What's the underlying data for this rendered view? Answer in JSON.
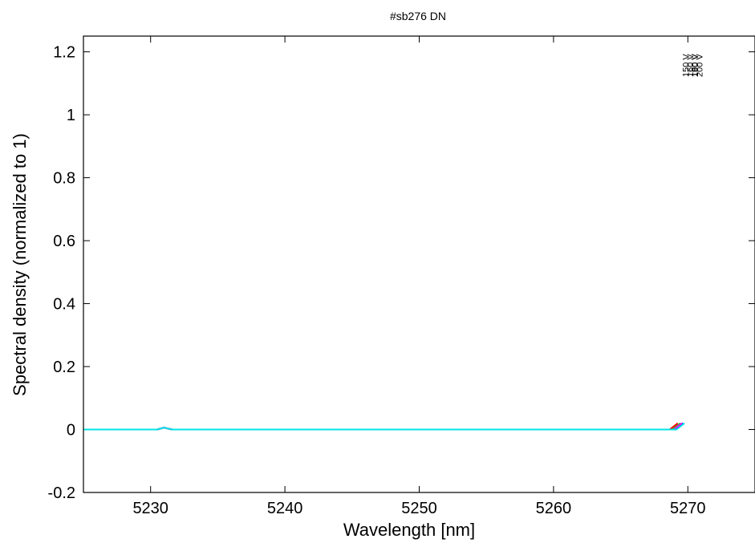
{
  "chart_data": {
    "type": "line",
    "title": "#sb276 DN",
    "xlabel": "Wavelength [nm]",
    "ylabel": "Spectral density (normalized to 1)",
    "xlim": [
      5225,
      5275
    ],
    "ylim": [
      -0.2,
      1.25
    ],
    "xticks": [
      "5230",
      "5240",
      "5250",
      "5260",
      "5270"
    ],
    "yticks": [
      "-0.2",
      "0",
      "0.2",
      "0.4",
      "0.6",
      "0.8",
      "1",
      "1.2"
    ],
    "grid": false,
    "legend": "none",
    "series": [
      {
        "color": "#ff0000",
        "peak": 5270.1,
        "label": "150 V"
      },
      {
        "color": "#00cc00",
        "peak": 5270.3,
        "label": "160 V"
      },
      {
        "color": "#0000ff",
        "peak": 5270.5,
        "label": "180 V"
      },
      {
        "color": "#ff00ff",
        "peak": 5270.4,
        "label": "190 V"
      },
      {
        "color": "#00e5e5",
        "peak": 5270.6,
        "label": "200 V"
      }
    ]
  }
}
